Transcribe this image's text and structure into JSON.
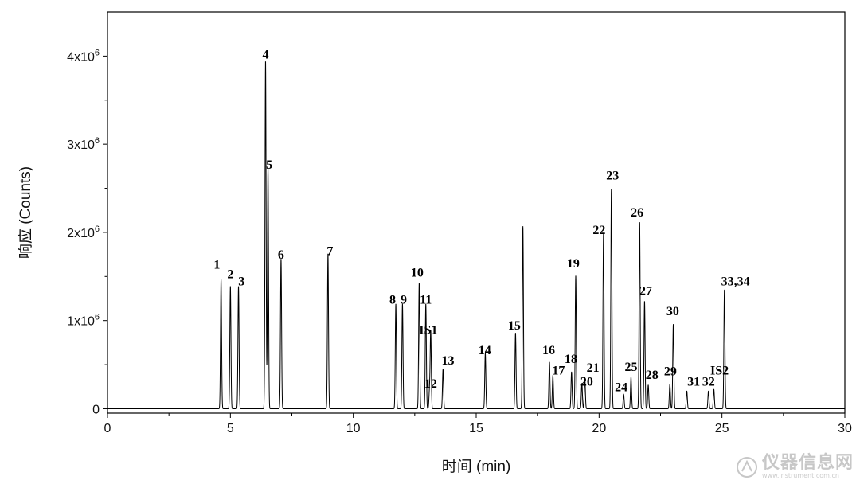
{
  "chart_data": {
    "type": "line",
    "xlabel": "时间 (min)",
    "ylabel": "响应 (Counts)",
    "xlim": [
      0,
      30
    ],
    "ylim": [
      -50000,
      4500000
    ],
    "x_ticks": [
      0,
      5,
      10,
      15,
      20,
      25,
      30
    ],
    "x_tick_labels": [
      "0",
      "5",
      "10",
      "15",
      "20",
      "25",
      "30"
    ],
    "y_ticks": [
      0,
      1000000,
      2000000,
      3000000,
      4000000
    ],
    "y_tick_labels": [
      {
        "base": "0",
        "exp": ""
      },
      {
        "base": "1x10",
        "exp": "6"
      },
      {
        "base": "2x10",
        "exp": "6"
      },
      {
        "base": "3x10",
        "exp": "6"
      },
      {
        "base": "4x10",
        "exp": "6"
      }
    ],
    "baseline_start": 3.5,
    "grid": false,
    "legend": "none",
    "line_color": "#000000",
    "peaks": [
      {
        "x": 4.62,
        "y": 1470000
      },
      {
        "x": 5.0,
        "y": 1390000
      },
      {
        "x": 5.33,
        "y": 1390000
      },
      {
        "x": 6.43,
        "y": 3950000
      },
      {
        "x": 6.53,
        "y": 2730000
      },
      {
        "x": 7.06,
        "y": 1700000
      },
      {
        "x": 8.97,
        "y": 1760000
      },
      {
        "x": 11.73,
        "y": 1190000
      },
      {
        "x": 12.0,
        "y": 1190000
      },
      {
        "x": 12.68,
        "y": 1430000
      },
      {
        "x": 12.95,
        "y": 1190000
      },
      {
        "x": 13.15,
        "y": 880000
      },
      {
        "x": 13.1,
        "y": 200000
      },
      {
        "x": 13.65,
        "y": 450000
      },
      {
        "x": 15.37,
        "y": 630000
      },
      {
        "x": 16.6,
        "y": 860000
      },
      {
        "x": 16.9,
        "y": 2070000
      },
      {
        "x": 17.98,
        "y": 530000
      },
      {
        "x": 18.12,
        "y": 380000
      },
      {
        "x": 18.88,
        "y": 420000
      },
      {
        "x": 19.05,
        "y": 1510000
      },
      {
        "x": 19.3,
        "y": 290000
      },
      {
        "x": 19.42,
        "y": 360000
      },
      {
        "x": 20.18,
        "y": 1990000
      },
      {
        "x": 20.5,
        "y": 2490000
      },
      {
        "x": 21.0,
        "y": 160000
      },
      {
        "x": 21.3,
        "y": 360000
      },
      {
        "x": 21.65,
        "y": 2120000
      },
      {
        "x": 21.85,
        "y": 1220000
      },
      {
        "x": 22.0,
        "y": 270000
      },
      {
        "x": 22.88,
        "y": 280000
      },
      {
        "x": 23.02,
        "y": 960000
      },
      {
        "x": 23.57,
        "y": 200000
      },
      {
        "x": 24.45,
        "y": 200000
      },
      {
        "x": 24.67,
        "y": 220000
      },
      {
        "x": 25.1,
        "y": 1350000
      }
    ],
    "peak_labels": [
      {
        "text": "1",
        "x": 4.45,
        "y": 1590000
      },
      {
        "text": "2",
        "x": 5.0,
        "y": 1480000
      },
      {
        "text": "3",
        "x": 5.45,
        "y": 1400000
      },
      {
        "text": "4",
        "x": 6.43,
        "y": 3970000
      },
      {
        "text": "5",
        "x": 6.58,
        "y": 2720000
      },
      {
        "text": "6",
        "x": 7.06,
        "y": 1700000
      },
      {
        "text": "7",
        "x": 9.05,
        "y": 1740000
      },
      {
        "text": "8",
        "x": 11.6,
        "y": 1190000
      },
      {
        "text": "9",
        "x": 12.05,
        "y": 1190000
      },
      {
        "text": "10",
        "x": 12.6,
        "y": 1500000
      },
      {
        "text": "11",
        "x": 12.95,
        "y": 1190000
      },
      {
        "text": "IS1",
        "x": 13.05,
        "y": 850000
      },
      {
        "text": "12",
        "x": 13.15,
        "y": 240000
      },
      {
        "text": "13",
        "x": 13.85,
        "y": 500000
      },
      {
        "text": "14",
        "x": 15.35,
        "y": 620000
      },
      {
        "text": "15",
        "x": 16.55,
        "y": 900000
      },
      {
        "text": "16",
        "x": 17.95,
        "y": 620000
      },
      {
        "text": "17",
        "x": 18.35,
        "y": 390000
      },
      {
        "text": "18",
        "x": 18.85,
        "y": 520000
      },
      {
        "text": "19",
        "x": 18.95,
        "y": 1600000
      },
      {
        "text": "20",
        "x": 19.5,
        "y": 260000
      },
      {
        "text": "21",
        "x": 19.75,
        "y": 420000
      },
      {
        "text": "22",
        "x": 20.0,
        "y": 1980000
      },
      {
        "text": "23",
        "x": 20.55,
        "y": 2600000
      },
      {
        "text": "24",
        "x": 20.9,
        "y": 200000
      },
      {
        "text": "25",
        "x": 21.3,
        "y": 430000
      },
      {
        "text": "26",
        "x": 21.55,
        "y": 2180000
      },
      {
        "text": "27",
        "x": 21.9,
        "y": 1290000
      },
      {
        "text": "28",
        "x": 22.15,
        "y": 340000
      },
      {
        "text": "29",
        "x": 22.9,
        "y": 380000
      },
      {
        "text": "30",
        "x": 23.0,
        "y": 1060000
      },
      {
        "text": "31",
        "x": 23.85,
        "y": 260000
      },
      {
        "text": "32",
        "x": 24.45,
        "y": 260000
      },
      {
        "text": "IS2",
        "x": 24.9,
        "y": 390000
      },
      {
        "text": "33,34",
        "x": 25.55,
        "y": 1400000
      }
    ]
  },
  "watermark": {
    "brand": "仪器信息网",
    "sub": "www.instrument.com.cn",
    "color": "#9a9a9a"
  }
}
